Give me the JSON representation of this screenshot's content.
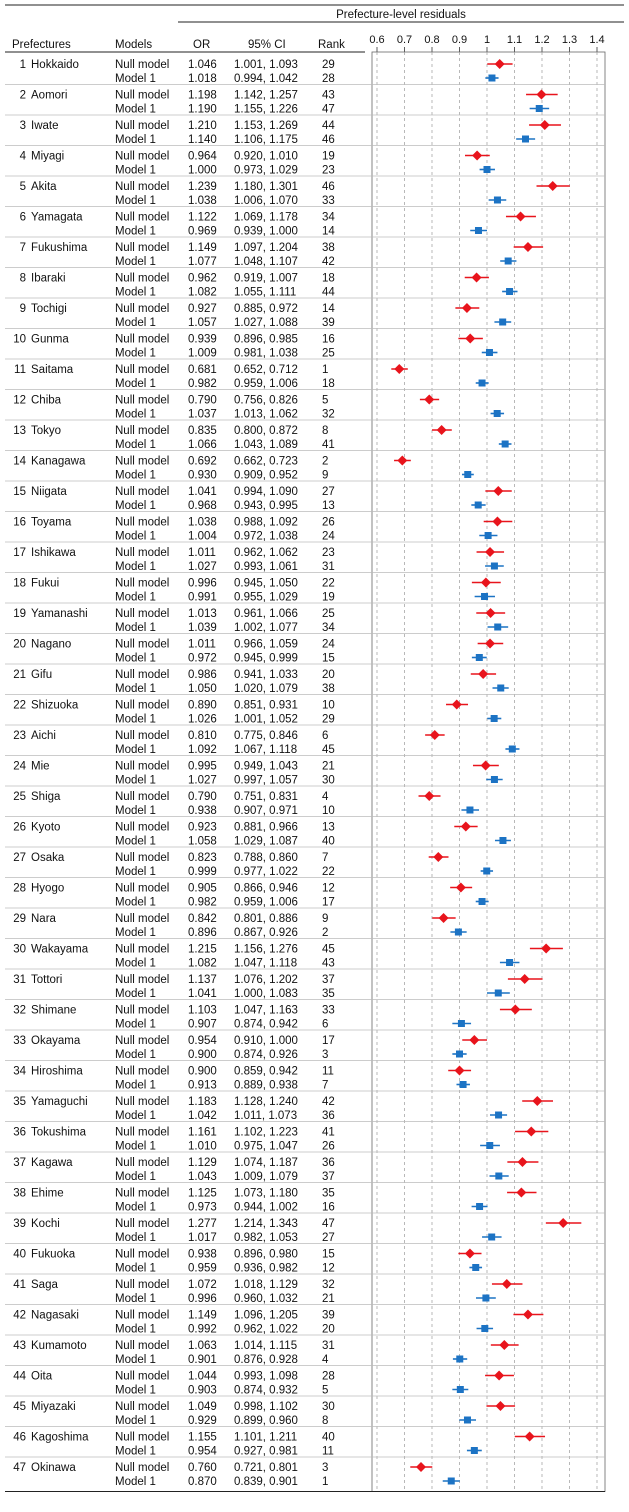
{
  "chart_data": {
    "type": "forest",
    "panel_title": "Prefecture-level residuals",
    "columns": [
      "Prefectures",
      "Models",
      "OR",
      "95% CI",
      "Rank"
    ],
    "xticks": [
      0.6,
      0.7,
      0.8,
      0.9,
      1,
      1.1,
      1.2,
      1.3,
      1.4
    ],
    "xlim": [
      0.6,
      1.4
    ],
    "reference_line": 1,
    "grid": "dashed vertical",
    "series": [
      {
        "name": "Null model",
        "color": "#e8141c",
        "marker": "diamond"
      },
      {
        "name": "Model 1",
        "color": "#1c73c4",
        "marker": "square"
      }
    ],
    "rows": [
      {
        "no": "1",
        "name": "Hokkaido",
        "null": {
          "or": "1.046",
          "ci": "1.001, 1.093",
          "rank": "29"
        },
        "m1": {
          "or": "1.018",
          "ci": "0.994, 1.042",
          "rank": "28"
        }
      },
      {
        "no": "2",
        "name": "Aomori",
        "null": {
          "or": "1.198",
          "ci": "1.142, 1.257",
          "rank": "43"
        },
        "m1": {
          "or": "1.190",
          "ci": "1.155, 1.226",
          "rank": "47"
        }
      },
      {
        "no": "3",
        "name": "Iwate",
        "null": {
          "or": "1.210",
          "ci": "1.153, 1.269",
          "rank": "44"
        },
        "m1": {
          "or": "1.140",
          "ci": "1.106, 1.175",
          "rank": "46"
        }
      },
      {
        "no": "4",
        "name": "Miyagi",
        "null": {
          "or": "0.964",
          "ci": "0.920, 1.010",
          "rank": "19"
        },
        "m1": {
          "or": "1.000",
          "ci": "0.973, 1.029",
          "rank": "23"
        }
      },
      {
        "no": "5",
        "name": "Akita",
        "null": {
          "or": "1.239",
          "ci": "1.180, 1.301",
          "rank": "46"
        },
        "m1": {
          "or": "1.038",
          "ci": "1.006, 1.070",
          "rank": "33"
        }
      },
      {
        "no": "6",
        "name": "Yamagata",
        "null": {
          "or": "1.122",
          "ci": "1.069, 1.178",
          "rank": "34"
        },
        "m1": {
          "or": "0.969",
          "ci": "0.939, 1.000",
          "rank": "14"
        }
      },
      {
        "no": "7",
        "name": "Fukushima",
        "null": {
          "or": "1.149",
          "ci": "1.097, 1.204",
          "rank": "38"
        },
        "m1": {
          "or": "1.077",
          "ci": "1.048, 1.107",
          "rank": "42"
        }
      },
      {
        "no": "8",
        "name": "Ibaraki",
        "null": {
          "or": "0.962",
          "ci": "0.919, 1.007",
          "rank": "18"
        },
        "m1": {
          "or": "1.082",
          "ci": "1.055, 1.111",
          "rank": "44"
        }
      },
      {
        "no": "9",
        "name": "Tochigi",
        "null": {
          "or": "0.927",
          "ci": "0.885, 0.972",
          "rank": "14"
        },
        "m1": {
          "or": "1.057",
          "ci": "1.027, 1.088",
          "rank": "39"
        }
      },
      {
        "no": "10",
        "name": "Gunma",
        "null": {
          "or": "0.939",
          "ci": "0.896, 0.985",
          "rank": "16"
        },
        "m1": {
          "or": "1.009",
          "ci": "0.981, 1.038",
          "rank": "25"
        }
      },
      {
        "no": "11",
        "name": "Saitama",
        "null": {
          "or": "0.681",
          "ci": "0.652, 0.712",
          "rank": "1"
        },
        "m1": {
          "or": "0.982",
          "ci": "0.959, 1.006",
          "rank": "18"
        }
      },
      {
        "no": "12",
        "name": "Chiba",
        "null": {
          "or": "0.790",
          "ci": "0.756, 0.826",
          "rank": "5"
        },
        "m1": {
          "or": "1.037",
          "ci": "1.013, 1.062",
          "rank": "32"
        }
      },
      {
        "no": "13",
        "name": "Tokyo",
        "null": {
          "or": "0.835",
          "ci": "0.800, 0.872",
          "rank": "8"
        },
        "m1": {
          "or": "1.066",
          "ci": "1.043, 1.089",
          "rank": "41"
        }
      },
      {
        "no": "14",
        "name": "Kanagawa",
        "null": {
          "or": "0.692",
          "ci": "0.662, 0.723",
          "rank": "2"
        },
        "m1": {
          "or": "0.930",
          "ci": "0.909, 0.952",
          "rank": "9"
        }
      },
      {
        "no": "15",
        "name": "Niigata",
        "null": {
          "or": "1.041",
          "ci": "0.994, 1.090",
          "rank": "27"
        },
        "m1": {
          "or": "0.968",
          "ci": "0.943, 0.995",
          "rank": "13"
        }
      },
      {
        "no": "16",
        "name": "Toyama",
        "null": {
          "or": "1.038",
          "ci": "0.988, 1.092",
          "rank": "26"
        },
        "m1": {
          "or": "1.004",
          "ci": "0.972, 1.038",
          "rank": "24"
        }
      },
      {
        "no": "17",
        "name": "Ishikawa",
        "null": {
          "or": "1.011",
          "ci": "0.962, 1.062",
          "rank": "23"
        },
        "m1": {
          "or": "1.027",
          "ci": "0.993, 1.061",
          "rank": "31"
        }
      },
      {
        "no": "18",
        "name": "Fukui",
        "null": {
          "or": "0.996",
          "ci": "0.945, 1.050",
          "rank": "22"
        },
        "m1": {
          "or": "0.991",
          "ci": "0.955, 1.029",
          "rank": "19"
        }
      },
      {
        "no": "19",
        "name": "Yamanashi",
        "null": {
          "or": "1.013",
          "ci": "0.961, 1.066",
          "rank": "25"
        },
        "m1": {
          "or": "1.039",
          "ci": "1.002, 1.077",
          "rank": "34"
        }
      },
      {
        "no": "20",
        "name": "Nagano",
        "null": {
          "or": "1.011",
          "ci": "0.966, 1.059",
          "rank": "24"
        },
        "m1": {
          "or": "0.972",
          "ci": "0.945, 0.999",
          "rank": "15"
        }
      },
      {
        "no": "21",
        "name": "Gifu",
        "null": {
          "or": "0.986",
          "ci": "0.941, 1.033",
          "rank": "20"
        },
        "m1": {
          "or": "1.050",
          "ci": "1.020, 1.079",
          "rank": "38"
        }
      },
      {
        "no": "22",
        "name": "Shizuoka",
        "null": {
          "or": "0.890",
          "ci": "0.851, 0.931",
          "rank": "10"
        },
        "m1": {
          "or": "1.026",
          "ci": "1.001, 1.052",
          "rank": "29"
        }
      },
      {
        "no": "23",
        "name": "Aichi",
        "null": {
          "or": "0.810",
          "ci": "0.775, 0.846",
          "rank": "6"
        },
        "m1": {
          "or": "1.092",
          "ci": "1.067, 1.118",
          "rank": "45"
        }
      },
      {
        "no": "24",
        "name": "Mie",
        "null": {
          "or": "0.995",
          "ci": "0.949, 1.043",
          "rank": "21"
        },
        "m1": {
          "or": "1.027",
          "ci": "0.997, 1.057",
          "rank": "30"
        }
      },
      {
        "no": "25",
        "name": "Shiga",
        "null": {
          "or": "0.790",
          "ci": "0.751, 0.831",
          "rank": "4"
        },
        "m1": {
          "or": "0.938",
          "ci": "0.907, 0.971",
          "rank": "10"
        }
      },
      {
        "no": "26",
        "name": "Kyoto",
        "null": {
          "or": "0.923",
          "ci": "0.881, 0.966",
          "rank": "13"
        },
        "m1": {
          "or": "1.058",
          "ci": "1.029, 1.087",
          "rank": "40"
        }
      },
      {
        "no": "27",
        "name": "Osaka",
        "null": {
          "or": "0.823",
          "ci": "0.788, 0.860",
          "rank": "7"
        },
        "m1": {
          "or": "0.999",
          "ci": "0.977, 1.022",
          "rank": "22"
        }
      },
      {
        "no": "28",
        "name": "Hyogo",
        "null": {
          "or": "0.905",
          "ci": "0.866, 0.946",
          "rank": "12"
        },
        "m1": {
          "or": "0.982",
          "ci": "0.959, 1.006",
          "rank": "17"
        }
      },
      {
        "no": "29",
        "name": "Nara",
        "null": {
          "or": "0.842",
          "ci": "0.801, 0.886",
          "rank": "9"
        },
        "m1": {
          "or": "0.896",
          "ci": "0.867, 0.926",
          "rank": "2"
        }
      },
      {
        "no": "30",
        "name": "Wakayama",
        "null": {
          "or": "1.215",
          "ci": "1.156, 1.276",
          "rank": "45"
        },
        "m1": {
          "or": "1.082",
          "ci": "1.047, 1.118",
          "rank": "43"
        }
      },
      {
        "no": "31",
        "name": "Tottori",
        "null": {
          "or": "1.137",
          "ci": "1.076, 1.202",
          "rank": "37"
        },
        "m1": {
          "or": "1.041",
          "ci": "1.000, 1.083",
          "rank": "35"
        }
      },
      {
        "no": "32",
        "name": "Shimane",
        "null": {
          "or": "1.103",
          "ci": "1.047, 1.163",
          "rank": "33"
        },
        "m1": {
          "or": "0.907",
          "ci": "0.874, 0.942",
          "rank": "6"
        }
      },
      {
        "no": "33",
        "name": "Okayama",
        "null": {
          "or": "0.954",
          "ci": "0.910, 1.000",
          "rank": "17"
        },
        "m1": {
          "or": "0.900",
          "ci": "0.874, 0.926",
          "rank": "3"
        }
      },
      {
        "no": "34",
        "name": "Hiroshima",
        "null": {
          "or": "0.900",
          "ci": "0.859, 0.942",
          "rank": "11"
        },
        "m1": {
          "or": "0.913",
          "ci": "0.889, 0.938",
          "rank": "7"
        }
      },
      {
        "no": "35",
        "name": "Yamaguchi",
        "null": {
          "or": "1.183",
          "ci": "1.128, 1.240",
          "rank": "42"
        },
        "m1": {
          "or": "1.042",
          "ci": "1.011, 1.073",
          "rank": "36"
        }
      },
      {
        "no": "36",
        "name": "Tokushima",
        "null": {
          "or": "1.161",
          "ci": "1.102, 1.223",
          "rank": "41"
        },
        "m1": {
          "or": "1.010",
          "ci": "0.975, 1.047",
          "rank": "26"
        }
      },
      {
        "no": "37",
        "name": "Kagawa",
        "null": {
          "or": "1.129",
          "ci": "1.074, 1.187",
          "rank": "36"
        },
        "m1": {
          "or": "1.043",
          "ci": "1.009, 1.079",
          "rank": "37"
        }
      },
      {
        "no": "38",
        "name": "Ehime",
        "null": {
          "or": "1.125",
          "ci": "1.073, 1.180",
          "rank": "35"
        },
        "m1": {
          "or": "0.973",
          "ci": "0.944, 1.002",
          "rank": "16"
        }
      },
      {
        "no": "39",
        "name": "Kochi",
        "null": {
          "or": "1.277",
          "ci": "1.214, 1.343",
          "rank": "47"
        },
        "m1": {
          "or": "1.017",
          "ci": "0.982, 1.053",
          "rank": "27"
        }
      },
      {
        "no": "40",
        "name": "Fukuoka",
        "null": {
          "or": "0.938",
          "ci": "0.896, 0.980",
          "rank": "15"
        },
        "m1": {
          "or": "0.959",
          "ci": "0.936, 0.982",
          "rank": "12"
        }
      },
      {
        "no": "41",
        "name": "Saga",
        "null": {
          "or": "1.072",
          "ci": "1.018, 1.129",
          "rank": "32"
        },
        "m1": {
          "or": "0.996",
          "ci": "0.960, 1.032",
          "rank": "21"
        }
      },
      {
        "no": "42",
        "name": "Nagasaki",
        "null": {
          "or": "1.149",
          "ci": "1.096, 1.205",
          "rank": "39"
        },
        "m1": {
          "or": "0.992",
          "ci": "0.962, 1.022",
          "rank": "20"
        }
      },
      {
        "no": "43",
        "name": "Kumamoto",
        "null": {
          "or": "1.063",
          "ci": "1.014, 1.115",
          "rank": "31"
        },
        "m1": {
          "or": "0.901",
          "ci": "0.876, 0.928",
          "rank": "4"
        }
      },
      {
        "no": "44",
        "name": "Oita",
        "null": {
          "or": "1.044",
          "ci": "0.993, 1.098",
          "rank": "28"
        },
        "m1": {
          "or": "0.903",
          "ci": "0.874, 0.932",
          "rank": "5"
        }
      },
      {
        "no": "45",
        "name": "Miyazaki",
        "null": {
          "or": "1.049",
          "ci": "0.998, 1.102",
          "rank": "30"
        },
        "m1": {
          "or": "0.929",
          "ci": "0.899, 0.960",
          "rank": "8"
        }
      },
      {
        "no": "46",
        "name": "Kagoshima",
        "null": {
          "or": "1.155",
          "ci": "1.101, 1.211",
          "rank": "40"
        },
        "m1": {
          "or": "0.954",
          "ci": "0.927, 0.981",
          "rank": "11"
        }
      },
      {
        "no": "47",
        "name": "Okinawa",
        "null": {
          "or": "0.760",
          "ci": "0.721, 0.801",
          "rank": "3"
        },
        "m1": {
          "or": "0.870",
          "ci": "0.839, 0.901",
          "rank": "1"
        }
      }
    ]
  }
}
